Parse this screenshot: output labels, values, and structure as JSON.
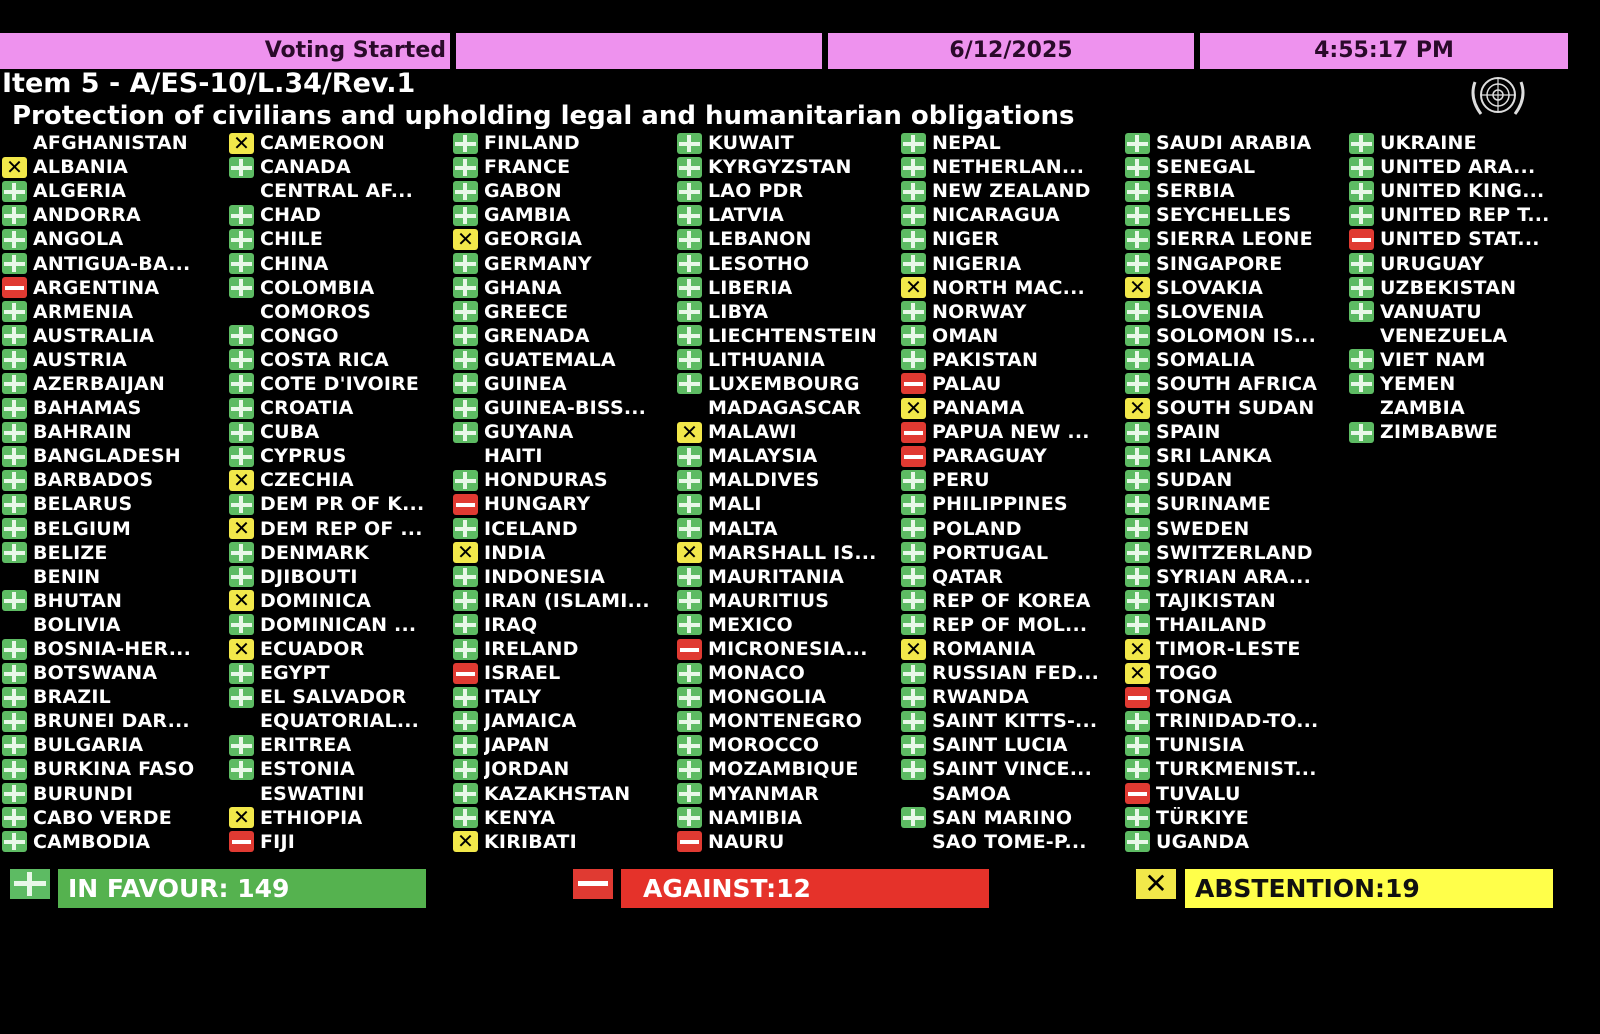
{
  "header": {
    "status": "Voting Started",
    "blank": "",
    "date": "6/12/2025",
    "time": "4:55:17 PM"
  },
  "item_title": "Item 5 - A/ES-10/L.34/Rev.1",
  "subtitle": "Protection of civilians and upholding legal and humanitarian obligations",
  "emblem_icon": "un-emblem-icon",
  "colors": {
    "yes": "#5dbb63",
    "no": "#e03a32",
    "abstain": "#f2e84a",
    "header": "#ee92ee"
  },
  "vote_legend": {
    "Y": "in-favour",
    "N": "against",
    "A": "abstention",
    "E": "did-not-vote"
  },
  "columns": [
    [
      [
        "AFGHANISTAN",
        "E"
      ],
      [
        "ALBANIA",
        "A"
      ],
      [
        "ALGERIA",
        "Y"
      ],
      [
        "ANDORRA",
        "Y"
      ],
      [
        "ANGOLA",
        "Y"
      ],
      [
        "ANTIGUA-BA...",
        "Y"
      ],
      [
        "ARGENTINA",
        "N"
      ],
      [
        "ARMENIA",
        "Y"
      ],
      [
        "AUSTRALIA",
        "Y"
      ],
      [
        "AUSTRIA",
        "Y"
      ],
      [
        "AZERBAIJAN",
        "Y"
      ],
      [
        "BAHAMAS",
        "Y"
      ],
      [
        "BAHRAIN",
        "Y"
      ],
      [
        "BANGLADESH",
        "Y"
      ],
      [
        "BARBADOS",
        "Y"
      ],
      [
        "BELARUS",
        "Y"
      ],
      [
        "BELGIUM",
        "Y"
      ],
      [
        "BELIZE",
        "Y"
      ],
      [
        "BENIN",
        "E"
      ],
      [
        "BHUTAN",
        "Y"
      ],
      [
        "BOLIVIA",
        "E"
      ],
      [
        "BOSNIA-HER...",
        "Y"
      ],
      [
        "BOTSWANA",
        "Y"
      ],
      [
        "BRAZIL",
        "Y"
      ],
      [
        "BRUNEI DAR...",
        "Y"
      ],
      [
        "BULGARIA",
        "Y"
      ],
      [
        "BURKINA FASO",
        "Y"
      ],
      [
        "BURUNDI",
        "Y"
      ],
      [
        "CABO VERDE",
        "Y"
      ],
      [
        "CAMBODIA",
        "Y"
      ]
    ],
    [
      [
        "CAMEROON",
        "A"
      ],
      [
        "CANADA",
        "Y"
      ],
      [
        "CENTRAL AF...",
        "E"
      ],
      [
        "CHAD",
        "Y"
      ],
      [
        "CHILE",
        "Y"
      ],
      [
        "CHINA",
        "Y"
      ],
      [
        "COLOMBIA",
        "Y"
      ],
      [
        "COMOROS",
        "E"
      ],
      [
        "CONGO",
        "Y"
      ],
      [
        "COSTA RICA",
        "Y"
      ],
      [
        "COTE D'IVOIRE",
        "Y"
      ],
      [
        "CROATIA",
        "Y"
      ],
      [
        "CUBA",
        "Y"
      ],
      [
        "CYPRUS",
        "Y"
      ],
      [
        "CZECHIA",
        "A"
      ],
      [
        "DEM PR OF K...",
        "Y"
      ],
      [
        "DEM REP OF ...",
        "A"
      ],
      [
        "DENMARK",
        "Y"
      ],
      [
        "DJIBOUTI",
        "Y"
      ],
      [
        "DOMINICA",
        "A"
      ],
      [
        "DOMINICAN ...",
        "Y"
      ],
      [
        "ECUADOR",
        "A"
      ],
      [
        "EGYPT",
        "Y"
      ],
      [
        "EL SALVADOR",
        "Y"
      ],
      [
        "EQUATORIAL...",
        "E"
      ],
      [
        "ERITREA",
        "Y"
      ],
      [
        "ESTONIA",
        "Y"
      ],
      [
        "ESWATINI",
        "E"
      ],
      [
        "ETHIOPIA",
        "A"
      ],
      [
        "FIJI",
        "N"
      ]
    ],
    [
      [
        "FINLAND",
        "Y"
      ],
      [
        "FRANCE",
        "Y"
      ],
      [
        "GABON",
        "Y"
      ],
      [
        "GAMBIA",
        "Y"
      ],
      [
        "GEORGIA",
        "A"
      ],
      [
        "GERMANY",
        "Y"
      ],
      [
        "GHANA",
        "Y"
      ],
      [
        "GREECE",
        "Y"
      ],
      [
        "GRENADA",
        "Y"
      ],
      [
        "GUATEMALA",
        "Y"
      ],
      [
        "GUINEA",
        "Y"
      ],
      [
        "GUINEA-BISS...",
        "Y"
      ],
      [
        "GUYANA",
        "Y"
      ],
      [
        "HAITI",
        "E"
      ],
      [
        "HONDURAS",
        "Y"
      ],
      [
        "HUNGARY",
        "N"
      ],
      [
        "ICELAND",
        "Y"
      ],
      [
        "INDIA",
        "A"
      ],
      [
        "INDONESIA",
        "Y"
      ],
      [
        "IRAN (ISLAMI...",
        "Y"
      ],
      [
        "IRAQ",
        "Y"
      ],
      [
        "IRELAND",
        "Y"
      ],
      [
        "ISRAEL",
        "N"
      ],
      [
        "ITALY",
        "Y"
      ],
      [
        "JAMAICA",
        "Y"
      ],
      [
        "JAPAN",
        "Y"
      ],
      [
        "JORDAN",
        "Y"
      ],
      [
        "KAZAKHSTAN",
        "Y"
      ],
      [
        "KENYA",
        "Y"
      ],
      [
        "KIRIBATI",
        "A"
      ]
    ],
    [
      [
        "KUWAIT",
        "Y"
      ],
      [
        "KYRGYZSTAN",
        "Y"
      ],
      [
        "LAO PDR",
        "Y"
      ],
      [
        "LATVIA",
        "Y"
      ],
      [
        "LEBANON",
        "Y"
      ],
      [
        "LESOTHO",
        "Y"
      ],
      [
        "LIBERIA",
        "Y"
      ],
      [
        "LIBYA",
        "Y"
      ],
      [
        "LIECHTENSTEIN",
        "Y"
      ],
      [
        "LITHUANIA",
        "Y"
      ],
      [
        "LUXEMBOURG",
        "Y"
      ],
      [
        "MADAGASCAR",
        "E"
      ],
      [
        "MALAWI",
        "A"
      ],
      [
        "MALAYSIA",
        "Y"
      ],
      [
        "MALDIVES",
        "Y"
      ],
      [
        "MALI",
        "Y"
      ],
      [
        "MALTA",
        "Y"
      ],
      [
        "MARSHALL IS...",
        "A"
      ],
      [
        "MAURITANIA",
        "Y"
      ],
      [
        "MAURITIUS",
        "Y"
      ],
      [
        "MEXICO",
        "Y"
      ],
      [
        "MICRONESIA...",
        "N"
      ],
      [
        "MONACO",
        "Y"
      ],
      [
        "MONGOLIA",
        "Y"
      ],
      [
        "MONTENEGRO",
        "Y"
      ],
      [
        "MOROCCO",
        "Y"
      ],
      [
        "MOZAMBIQUE",
        "Y"
      ],
      [
        "MYANMAR",
        "Y"
      ],
      [
        "NAMIBIA",
        "Y"
      ],
      [
        "NAURU",
        "N"
      ]
    ],
    [
      [
        "NEPAL",
        "Y"
      ],
      [
        "NETHERLAN...",
        "Y"
      ],
      [
        "NEW ZEALAND",
        "Y"
      ],
      [
        "NICARAGUA",
        "Y"
      ],
      [
        "NIGER",
        "Y"
      ],
      [
        "NIGERIA",
        "Y"
      ],
      [
        "NORTH MAC...",
        "A"
      ],
      [
        "NORWAY",
        "Y"
      ],
      [
        "OMAN",
        "Y"
      ],
      [
        "PAKISTAN",
        "Y"
      ],
      [
        "PALAU",
        "N"
      ],
      [
        "PANAMA",
        "A"
      ],
      [
        "PAPUA NEW ...",
        "N"
      ],
      [
        "PARAGUAY",
        "N"
      ],
      [
        "PERU",
        "Y"
      ],
      [
        "PHILIPPINES",
        "Y"
      ],
      [
        "POLAND",
        "Y"
      ],
      [
        "PORTUGAL",
        "Y"
      ],
      [
        "QATAR",
        "Y"
      ],
      [
        "REP OF KOREA",
        "Y"
      ],
      [
        "REP OF MOL...",
        "Y"
      ],
      [
        "ROMANIA",
        "A"
      ],
      [
        "RUSSIAN FED...",
        "Y"
      ],
      [
        "RWANDA",
        "Y"
      ],
      [
        "SAINT KITTS-...",
        "Y"
      ],
      [
        "SAINT LUCIA",
        "Y"
      ],
      [
        "SAINT VINCE...",
        "Y"
      ],
      [
        "SAMOA",
        "E"
      ],
      [
        "SAN MARINO",
        "Y"
      ],
      [
        "SAO TOME-P...",
        "E"
      ]
    ],
    [
      [
        "SAUDI ARABIA",
        "Y"
      ],
      [
        "SENEGAL",
        "Y"
      ],
      [
        "SERBIA",
        "Y"
      ],
      [
        "SEYCHELLES",
        "Y"
      ],
      [
        "SIERRA LEONE",
        "Y"
      ],
      [
        "SINGAPORE",
        "Y"
      ],
      [
        "SLOVAKIA",
        "A"
      ],
      [
        "SLOVENIA",
        "Y"
      ],
      [
        "SOLOMON IS...",
        "Y"
      ],
      [
        "SOMALIA",
        "Y"
      ],
      [
        "SOUTH AFRICA",
        "Y"
      ],
      [
        "SOUTH SUDAN",
        "A"
      ],
      [
        "SPAIN",
        "Y"
      ],
      [
        "SRI LANKA",
        "Y"
      ],
      [
        "SUDAN",
        "Y"
      ],
      [
        "SURINAME",
        "Y"
      ],
      [
        "SWEDEN",
        "Y"
      ],
      [
        "SWITZERLAND",
        "Y"
      ],
      [
        "SYRIAN ARA...",
        "Y"
      ],
      [
        "TAJIKISTAN",
        "Y"
      ],
      [
        "THAILAND",
        "Y"
      ],
      [
        "TIMOR-LESTE",
        "A"
      ],
      [
        "TOGO",
        "A"
      ],
      [
        "TONGA",
        "N"
      ],
      [
        "TRINIDAD-TO...",
        "Y"
      ],
      [
        "TUNISIA",
        "Y"
      ],
      [
        "TURKMENIST...",
        "Y"
      ],
      [
        "TUVALU",
        "N"
      ],
      [
        "TÜRKIYE",
        "Y"
      ],
      [
        "UGANDA",
        "Y"
      ]
    ],
    [
      [
        "UKRAINE",
        "Y"
      ],
      [
        "UNITED ARA...",
        "Y"
      ],
      [
        "UNITED KING...",
        "Y"
      ],
      [
        "UNITED REP T...",
        "Y"
      ],
      [
        "UNITED STAT...",
        "N"
      ],
      [
        "URUGUAY",
        "Y"
      ],
      [
        "UZBEKISTAN",
        "Y"
      ],
      [
        "VANUATU",
        "Y"
      ],
      [
        "VENEZUELA",
        "E"
      ],
      [
        "VIET NAM",
        "Y"
      ],
      [
        "YEMEN",
        "Y"
      ],
      [
        "ZAMBIA",
        "E"
      ],
      [
        "ZIMBABWE",
        "Y"
      ]
    ]
  ],
  "totals": {
    "in_favour": "IN FAVOUR: 149",
    "against": "AGAINST:12",
    "abstention": "ABSTENTION:19"
  }
}
